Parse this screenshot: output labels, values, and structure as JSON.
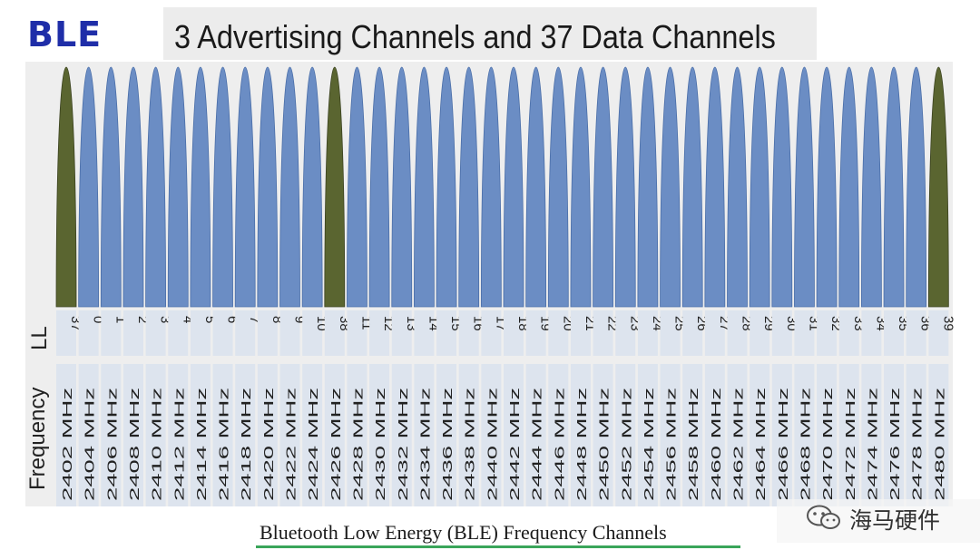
{
  "logo": "BLE",
  "title": "3 Advertising Channels and 37 Data Channels",
  "row_labels": {
    "ll": "LL",
    "frequency": "Frequency"
  },
  "footer": "Bluetooth Low Energy (BLE) Frequency Channels",
  "watermark": "海马硬件",
  "colors": {
    "advertising": "#5a6530",
    "data": "#6b8dc4",
    "advertising_edge": "#3b4220",
    "data_edge": "#4a6ea8",
    "label_bg": "#dde4ee",
    "footer_underline": "#3aa55a"
  },
  "channels": [
    {
      "ll": "37",
      "freq": "2402 MHz",
      "type": "advertising"
    },
    {
      "ll": "0",
      "freq": "2404 MHz",
      "type": "data"
    },
    {
      "ll": "1",
      "freq": "2406 MHz",
      "type": "data"
    },
    {
      "ll": "2",
      "freq": "2408 MHz",
      "type": "data"
    },
    {
      "ll": "3",
      "freq": "2410 MHz",
      "type": "data"
    },
    {
      "ll": "4",
      "freq": "2412 MHz",
      "type": "data"
    },
    {
      "ll": "5",
      "freq": "2414 MHz",
      "type": "data"
    },
    {
      "ll": "6",
      "freq": "2416 MHz",
      "type": "data"
    },
    {
      "ll": "7",
      "freq": "2418 MHz",
      "type": "data"
    },
    {
      "ll": "8",
      "freq": "2420 MHz",
      "type": "data"
    },
    {
      "ll": "9",
      "freq": "2422 MHz",
      "type": "data"
    },
    {
      "ll": "10",
      "freq": "2424 MHz",
      "type": "data"
    },
    {
      "ll": "38",
      "freq": "2426 MHz",
      "type": "advertising"
    },
    {
      "ll": "11",
      "freq": "2428 MHz",
      "type": "data"
    },
    {
      "ll": "12",
      "freq": "2430 MHz",
      "type": "data"
    },
    {
      "ll": "13",
      "freq": "2432 MHz",
      "type": "data"
    },
    {
      "ll": "14",
      "freq": "2434 MHz",
      "type": "data"
    },
    {
      "ll": "15",
      "freq": "2436 MHz",
      "type": "data"
    },
    {
      "ll": "16",
      "freq": "2438 MHz",
      "type": "data"
    },
    {
      "ll": "17",
      "freq": "2440 MHz",
      "type": "data"
    },
    {
      "ll": "18",
      "freq": "2442 MHz",
      "type": "data"
    },
    {
      "ll": "19",
      "freq": "2444 MHz",
      "type": "data"
    },
    {
      "ll": "20",
      "freq": "2446 MHz",
      "type": "data"
    },
    {
      "ll": "21",
      "freq": "2448 MHz",
      "type": "data"
    },
    {
      "ll": "22",
      "freq": "2450 MHz",
      "type": "data"
    },
    {
      "ll": "23",
      "freq": "2452 MHz",
      "type": "data"
    },
    {
      "ll": "24",
      "freq": "2454 MHz",
      "type": "data"
    },
    {
      "ll": "25",
      "freq": "2456 MHz",
      "type": "data"
    },
    {
      "ll": "26",
      "freq": "2458 MHz",
      "type": "data"
    },
    {
      "ll": "27",
      "freq": "2460 MHz",
      "type": "data"
    },
    {
      "ll": "28",
      "freq": "2462 MHz",
      "type": "data"
    },
    {
      "ll": "29",
      "freq": "2464 MHz",
      "type": "data"
    },
    {
      "ll": "30",
      "freq": "2466 MHz",
      "type": "data"
    },
    {
      "ll": "31",
      "freq": "2468 MHz",
      "type": "data"
    },
    {
      "ll": "32",
      "freq": "2470 MHz",
      "type": "data"
    },
    {
      "ll": "33",
      "freq": "2472 MHz",
      "type": "data"
    },
    {
      "ll": "34",
      "freq": "2474 MHz",
      "type": "data"
    },
    {
      "ll": "35",
      "freq": "2476 MHz",
      "type": "data"
    },
    {
      "ll": "36",
      "freq": "2478 MHz",
      "type": "data"
    },
    {
      "ll": "39",
      "freq": "2480 MHz",
      "type": "advertising"
    }
  ]
}
